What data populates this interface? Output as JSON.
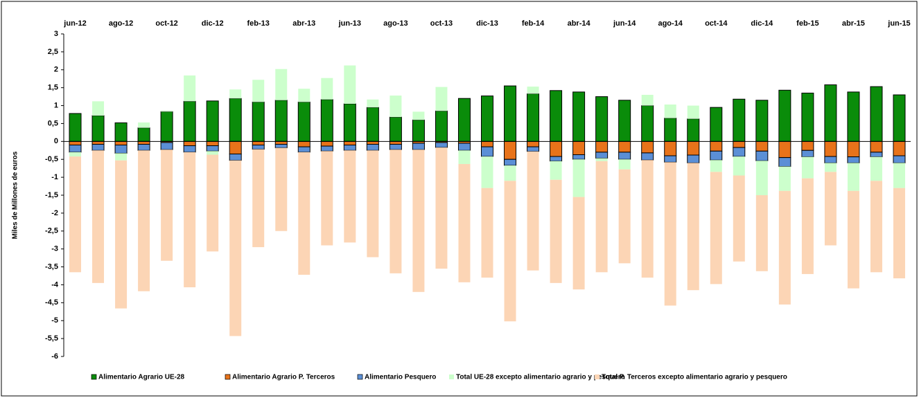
{
  "chart_data": {
    "type": "stacked_bar",
    "ylabel": "Miles de Millones de euros",
    "categories": [
      "jun-12",
      null,
      "ago-12",
      null,
      "oct-12",
      null,
      "dic-12",
      null,
      "feb-13",
      null,
      "abr-13",
      null,
      "jun-13",
      null,
      "ago-13",
      null,
      "oct-13",
      null,
      "dic-13",
      null,
      "feb-14",
      null,
      "abr-14",
      null,
      "jun-14",
      null,
      "ago-14",
      null,
      "oct-14",
      null,
      "dic-14",
      null,
      "feb-15",
      null,
      "abr-15",
      null,
      "jun-15"
    ],
    "series": [
      {
        "name": "Alimentario Agrario UE-28",
        "color": "#0a8c0a",
        "edgecolor": "#000000",
        "values": [
          0.78,
          0.72,
          0.52,
          0.38,
          0.83,
          1.12,
          1.13,
          1.2,
          1.1,
          1.15,
          1.1,
          1.17,
          1.05,
          0.95,
          0.68,
          0.6,
          0.85,
          1.2,
          1.27,
          1.55,
          1.33,
          1.42,
          1.38,
          1.25,
          1.15,
          1.0,
          0.65,
          0.63,
          0.95,
          1.18,
          1.15,
          1.43,
          1.35,
          1.58,
          1.38,
          1.53,
          1.3
        ]
      },
      {
        "name": "Alimentario Agrario P. Terceros",
        "color": "#e8731a",
        "edgecolor": "#000000",
        "values": [
          -0.1,
          -0.08,
          -0.1,
          -0.08,
          -0.03,
          -0.12,
          -0.12,
          -0.35,
          -0.1,
          -0.08,
          -0.15,
          -0.13,
          -0.1,
          -0.08,
          -0.08,
          -0.05,
          -0.03,
          -0.05,
          -0.15,
          -0.5,
          -0.15,
          -0.42,
          -0.37,
          -0.3,
          -0.3,
          -0.32,
          -0.4,
          -0.38,
          -0.27,
          -0.17,
          -0.27,
          -0.45,
          -0.25,
          -0.42,
          -0.43,
          -0.3,
          -0.4
        ]
      },
      {
        "name": "Alimentario Pesquero",
        "color": "#5b8fd6",
        "edgecolor": "#000000",
        "values": [
          -0.2,
          -0.17,
          -0.23,
          -0.17,
          -0.2,
          -0.18,
          -0.15,
          -0.18,
          -0.12,
          -0.1,
          -0.15,
          -0.14,
          -0.15,
          -0.17,
          -0.15,
          -0.18,
          -0.14,
          -0.2,
          -0.27,
          -0.17,
          -0.13,
          -0.13,
          -0.13,
          -0.17,
          -0.2,
          -0.2,
          -0.18,
          -0.22,
          -0.25,
          -0.25,
          -0.27,
          -0.25,
          -0.18,
          -0.18,
          -0.17,
          -0.13,
          -0.2
        ]
      },
      {
        "name": "Total UE-28 excepto alimentario agrario y pesquero",
        "color": "#ccffcc",
        "values": [
          -0.12,
          0.4,
          -0.2,
          0.15,
          0.03,
          0.72,
          -0.1,
          0.25,
          0.62,
          0.87,
          0.37,
          0.6,
          1.07,
          0.22,
          0.6,
          0.23,
          0.67,
          -0.38,
          -0.88,
          -0.43,
          0.2,
          -0.52,
          -1.05,
          -0.08,
          -0.28,
          0.3,
          0.38,
          0.37,
          -0.33,
          -0.53,
          -0.96,
          -0.68,
          -0.6,
          -0.25,
          -0.78,
          -0.67,
          -0.7
        ]
      },
      {
        "name": "Total P. Terceros excepto alimentario agrario y pesquero",
        "color": "#fcd5b5",
        "values": [
          -3.23,
          -3.7,
          -4.13,
          -3.93,
          -3.1,
          -3.77,
          -2.7,
          -4.9,
          -2.73,
          -2.32,
          -3.42,
          -2.63,
          -2.57,
          -2.98,
          -3.45,
          -3.97,
          -3.38,
          -3.3,
          -2.5,
          -3.92,
          -3.32,
          -2.88,
          -2.58,
          -3.1,
          -2.62,
          -3.28,
          -4.0,
          -3.55,
          -3.13,
          -2.4,
          -2.12,
          -3.17,
          -2.67,
          -2.05,
          -2.72,
          -2.55,
          -2.52
        ]
      }
    ],
    "ylim": [
      -6,
      3
    ],
    "yticks": [
      3,
      {
        "value": 2.5,
        "label": "2,5"
      },
      2,
      {
        "value": 1.5,
        "label": "1,5"
      },
      1,
      {
        "value": 0.5,
        "label": "0,5"
      },
      0,
      {
        "value": -0.5,
        "label": "-0,5"
      },
      -1,
      {
        "value": -1.5,
        "label": "-1,5"
      },
      -2,
      {
        "value": -2.5,
        "label": "-2,5"
      },
      -3,
      {
        "value": -3.5,
        "label": "-3,5"
      },
      -4,
      {
        "value": -4.5,
        "label": "-4,5"
      },
      -5,
      {
        "value": -5.5,
        "label": "-5,5"
      },
      -6
    ],
    "grid": false,
    "legend": "bottom"
  }
}
